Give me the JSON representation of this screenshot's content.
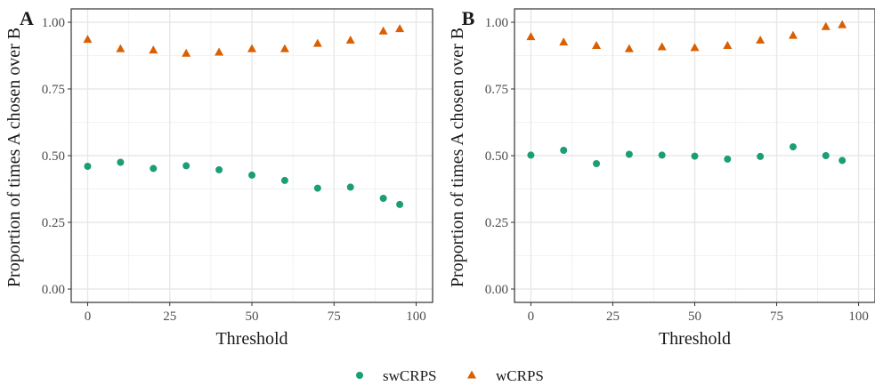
{
  "legend": {
    "entries": [
      {
        "name": "swCRPS",
        "shape": "circle",
        "color": "#1b9e77"
      },
      {
        "name": "wCRPS",
        "shape": "triangle",
        "color": "#d95f02"
      }
    ],
    "placement": "bottom"
  },
  "chart_data": [
    {
      "type": "scatter",
      "panel_label": "A",
      "xlabel": "Threshold",
      "ylabel": "Proportion of times A chosen over B",
      "xlim": [
        -5,
        105
      ],
      "ylim": [
        -0.05,
        1.05
      ],
      "xticks": [
        0,
        25,
        50,
        75,
        100
      ],
      "yticks": [
        0.0,
        0.25,
        0.5,
        0.75,
        1.0
      ],
      "xtick_labels": [
        "0",
        "25",
        "50",
        "75",
        "100"
      ],
      "ytick_labels": [
        "0.00",
        "0.25",
        "0.50",
        "0.75",
        "1.00"
      ],
      "grid": true,
      "x": [
        0,
        10,
        20,
        30,
        40,
        50,
        60,
        70,
        80,
        90,
        95
      ],
      "series": [
        {
          "name": "swCRPS",
          "marker": "circle",
          "color": "#1b9e77",
          "values": [
            0.46,
            0.475,
            0.452,
            0.462,
            0.447,
            0.427,
            0.407,
            0.378,
            0.382,
            0.34,
            0.317
          ]
        },
        {
          "name": "wCRPS",
          "marker": "triangle",
          "color": "#d95f02",
          "values": [
            0.935,
            0.9,
            0.895,
            0.883,
            0.887,
            0.9,
            0.9,
            0.92,
            0.932,
            0.966,
            0.975
          ]
        }
      ]
    },
    {
      "type": "scatter",
      "panel_label": "B",
      "xlabel": "Threshold",
      "ylabel": "Proportion of times A chosen over B",
      "xlim": [
        -5,
        105
      ],
      "ylim": [
        -0.05,
        1.05
      ],
      "xticks": [
        0,
        25,
        50,
        75,
        100
      ],
      "yticks": [
        0.0,
        0.25,
        0.5,
        0.75,
        1.0
      ],
      "xtick_labels": [
        "0",
        "25",
        "50",
        "75",
        "100"
      ],
      "ytick_labels": [
        "0.00",
        "0.25",
        "0.50",
        "0.75",
        "1.00"
      ],
      "grid": true,
      "x": [
        0,
        10,
        20,
        30,
        40,
        50,
        60,
        70,
        80,
        90,
        95
      ],
      "series": [
        {
          "name": "swCRPS",
          "marker": "circle",
          "color": "#1b9e77",
          "values": [
            0.502,
            0.52,
            0.47,
            0.505,
            0.502,
            0.498,
            0.487,
            0.497,
            0.533,
            0.5,
            0.482
          ]
        },
        {
          "name": "wCRPS",
          "marker": "triangle",
          "color": "#d95f02",
          "values": [
            0.945,
            0.925,
            0.912,
            0.9,
            0.907,
            0.904,
            0.912,
            0.932,
            0.95,
            0.983,
            0.99
          ]
        }
      ]
    }
  ]
}
